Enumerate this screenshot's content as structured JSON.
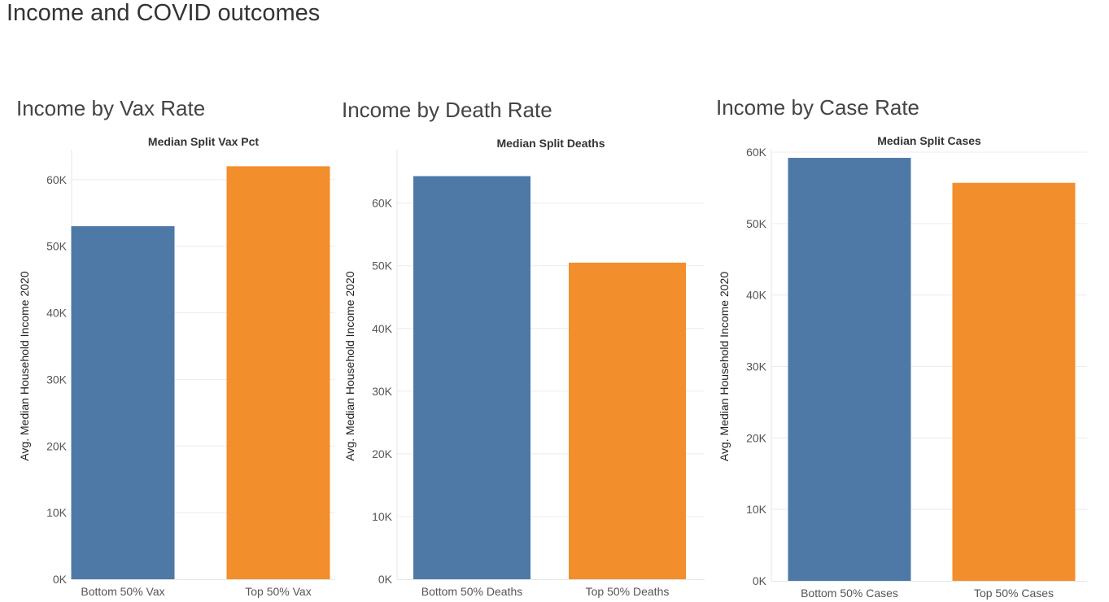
{
  "dashboard": {
    "title": "Income and COVID outcomes"
  },
  "colors": {
    "bottom": "#4e79a7",
    "top": "#f28e2b",
    "grid": "#ececec",
    "axis_text": "#555555",
    "header_text": "#333333"
  },
  "panels": [
    {
      "title": "Income by Vax Rate"
    },
    {
      "title": "Income by Death Rate"
    },
    {
      "title": "Income by Case Rate"
    }
  ],
  "chart_data": [
    {
      "type": "bar",
      "header": "Median Split Vax Pct",
      "categories": [
        "Bottom 50% Vax",
        "Top 50% Vax"
      ],
      "values": [
        53000,
        62000
      ],
      "ylabel": "Avg. Median Household Income 2020",
      "ylim": [
        0,
        64000
      ],
      "yticks": [
        0,
        10000,
        20000,
        30000,
        40000,
        50000,
        60000
      ],
      "ytick_labels": [
        "0K",
        "10K",
        "20K",
        "30K",
        "40K",
        "50K",
        "60K"
      ],
      "grid": true
    },
    {
      "type": "bar",
      "header": "Median Split Deaths",
      "categories": [
        "Bottom 50% Deaths",
        "Top 50% Deaths"
      ],
      "values": [
        64300,
        50500
      ],
      "ylabel": "Avg. Median Household Income 2020",
      "ylim": [
        0,
        68000
      ],
      "yticks": [
        0,
        10000,
        20000,
        30000,
        40000,
        50000,
        60000
      ],
      "ytick_labels": [
        "0K",
        "10K",
        "20K",
        "30K",
        "40K",
        "50K",
        "60K"
      ],
      "grid": true
    },
    {
      "type": "bar",
      "header": "Median Split Cases",
      "categories": [
        "Bottom 50% Cases",
        "Top 50% Cases"
      ],
      "values": [
        59200,
        55700
      ],
      "ylabel": "Avg. Median Household Income 2020",
      "ylim": [
        0,
        60000
      ],
      "yticks": [
        0,
        10000,
        20000,
        30000,
        40000,
        50000,
        60000
      ],
      "ytick_labels": [
        "0K",
        "10K",
        "20K",
        "30K",
        "40K",
        "50K",
        "60K"
      ],
      "grid": true
    }
  ]
}
